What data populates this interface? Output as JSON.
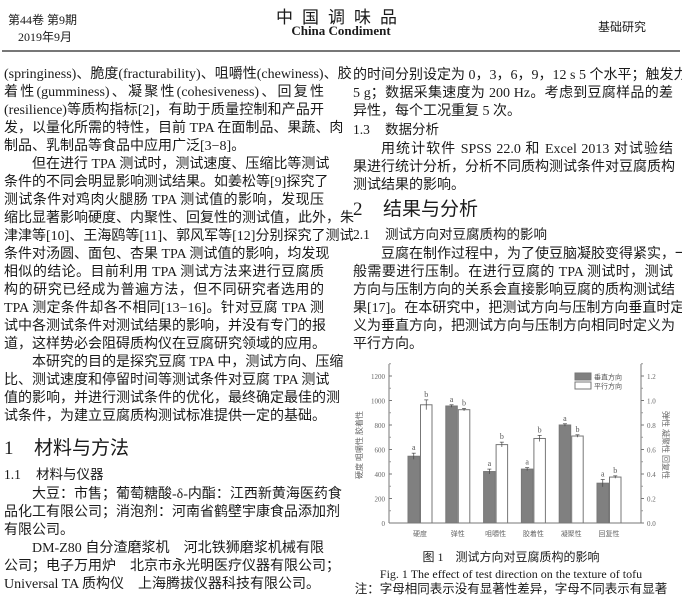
{
  "header": {
    "volume_issue": "第44卷 第9期",
    "date": "2019年9月",
    "journal_cn": "中国调味品",
    "journal_en": "China Condiment",
    "section": "基础研究"
  },
  "left": {
    "p1": {
      "indent": false,
      "lines": [
        "(springiness)、脆度(fracturability)、咀嚼性(chewiness)、胶",
        "着性(gumminess)、凝聚性(cohesiveness)、回复性",
        "(resilience)等质构指标[2]，有助于质量控制和产品开",
        "发，以量化所需的特性，目前 TPA 在面制品、果蔬、肉",
        "制品、乳制品等食品中应用广泛[3−8]。"
      ]
    },
    "p2": {
      "indent": true,
      "lines": [
        "但在进行 TPA 测试时，测试速度、压缩比等测试",
        "条件的不同会明显影响测试结果。如姜松等[9]探究了",
        "测试条件对鸡肉火腿肠 TPA 测试值的影响，发现压",
        "缩比显著影响硬度、内聚性、回复性的测试值，此外，朱",
        "津津等[10]、王海鸥等[11]、郭风军等[12]分别探究了测试",
        "条件对汤圆、面包、杏果 TPA 测试值的影响，均发现",
        "相似的结论。目前利用 TPA 测试方法来进行豆腐质",
        "构的研究已经成为普遍方法，但不同研究者选用的",
        "TPA 测定条件却各不相同[13−16]。针对豆腐 TPA 测",
        "试中各测试条件对测试结果的影响，并没有专门的报",
        "道，这样势必会阻碍质构仪在豆腐研究领域的应用。"
      ]
    },
    "p3": {
      "indent": true,
      "lines": [
        "本研究的目的是探究豆腐 TPA 中，测试方向、压缩",
        "比、测试速度和停留时间等测试条件对豆腐 TPA 测试",
        "值的影响，并进行测试条件的优化，最终确定最佳的测",
        "试条件，为建立豆腐质构测试标准提供一定的基础。"
      ]
    },
    "h1": {
      "num": "1",
      "text": "材料与方法"
    },
    "h2": {
      "num": "1.1",
      "text": "材料与仪器"
    },
    "p4": {
      "indent": true,
      "lines": [
        "大豆：市售；葡萄糖酸-δ-内酯：江西新黄海医药食",
        "品化工有限公司；消泡剂：河南省鹤壁宇康食品添加剂",
        "有限公司。"
      ]
    },
    "p5": {
      "indent": true,
      "lines": [
        "DM-Z80 自分渣磨浆机　河北铁狮磨浆机械有限",
        "公司；电子万用炉　北京市永光明医疗仪器有限公司；",
        "Universal TA 质构仪　上海腾拔仪器科技有限公司。"
      ]
    }
  },
  "right": {
    "p6": {
      "indent": false,
      "lines": [
        "的时间分别设定为 0，3，6，9，12 s 5 个水平；触发力为",
        "5 g；数据采集速度为 200 Hz。考虑到豆腐样品的差",
        "异性，每个工况重复 5 次。"
      ]
    },
    "h2a": {
      "num": "1.3",
      "text": "数据分析"
    },
    "p7": {
      "indent": true,
      "lines": [
        "用统计软件 SPSS 22.0 和 Excel 2013 对试验结",
        "果进行统计分析，分析不同质构测试条件对豆腐质构",
        "测试结果的影响。"
      ]
    },
    "h1": {
      "num": "2",
      "text": "结果与分析"
    },
    "h2b": {
      "num": "2.1",
      "text": "测试方向对豆腐质构的影响"
    },
    "p8": {
      "indent": true,
      "lines": [
        "豆腐在制作过程中，为了使豆脑凝胶变得紧实，一",
        "般需要进行压制。在进行豆腐的 TPA 测试时，测试",
        "方向与压制方向的关系会直接影响豆腐的质构测试结",
        "果[17]。在本研究中，把测试方向与压制方向垂直时定",
        "义为垂直方向，把测试方向与压制方向相同时定义为",
        "平行方向。"
      ]
    }
  },
  "figure": {
    "caption_cn": "图 1　测试方向对豆腐质构的影响",
    "caption_en": "Fig. 1 The effect of test direction on the texture of tofu",
    "note": "注：字母相同表示没有显著性差异，字母不同表示有显著"
  },
  "chart_data": {
    "type": "bar",
    "categories": [
      "硬度",
      "弹性",
      "咀嚼性",
      "胶着性",
      "凝聚性",
      "回复性"
    ],
    "ylabel_left": "硬度  咀嚼性  胶着性",
    "ylabel_right": "弹性  凝聚性  回复性",
    "ylim_left": [
      0,
      1200
    ],
    "ylim_right": [
      0,
      1.2
    ],
    "yticks_left": [
      "0",
      "200",
      "400",
      "600",
      "800",
      "1000",
      "1200"
    ],
    "yticks_right": [
      "0.0",
      "0.2",
      "0.4",
      "0.6",
      "0.8",
      "1.0",
      "1.2"
    ],
    "axis_for_category": [
      "left",
      "right",
      "left",
      "left",
      "right",
      "right"
    ],
    "legend_position": "top-right",
    "series": [
      {
        "name": "垂直方向",
        "color": "#808080",
        "values": [
          545,
          0.955,
          420,
          440,
          0.8,
          0.325
        ],
        "errors": [
          25,
          0.01,
          20,
          12,
          0.01,
          0.03
        ],
        "letters": [
          "a",
          "a",
          "a",
          "a",
          "a",
          "a"
        ]
      },
      {
        "name": "平行方向",
        "color": "#ffffff",
        "values": [
          965,
          0.925,
          640,
          690,
          0.71,
          0.375
        ],
        "errors": [
          40,
          0.01,
          20,
          25,
          0.01,
          0.01
        ],
        "letters": [
          "b",
          "b",
          "b",
          "b",
          "b",
          "b"
        ]
      }
    ]
  }
}
